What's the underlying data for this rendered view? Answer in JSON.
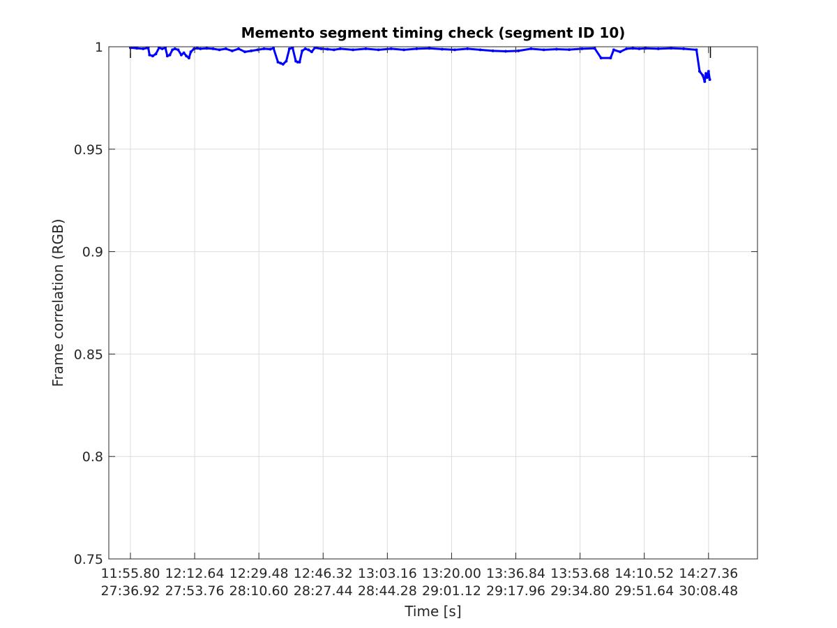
{
  "chart_data": {
    "type": "line",
    "title": "Memento segment timing check (segment ID 10)",
    "xlabel": "Time [s]",
    "ylabel": "Frame correlation (RGB)",
    "ylim": [
      0.75,
      1.0
    ],
    "xlim": [
      -34,
      986
    ],
    "grid": true,
    "yticks": [
      0.75,
      0.8,
      0.85,
      0.9,
      0.95,
      1.0
    ],
    "ytick_labels": [
      "0.75",
      "0.8",
      "0.85",
      "0.9",
      "0.95",
      "1"
    ],
    "xticks": [
      0,
      101,
      202,
      303,
      404,
      505,
      606,
      707,
      808,
      909
    ],
    "xtick_labels": [
      [
        "11:55.80",
        "27:36.92"
      ],
      [
        "12:12.64",
        "27:53.76"
      ],
      [
        "12:29.48",
        "28:10.60"
      ],
      [
        "12:46.32",
        "28:27.44"
      ],
      [
        "13:03.16",
        "28:44.28"
      ],
      [
        "13:20.00",
        "29:01.12"
      ],
      [
        "13:36.84",
        "29:17.96"
      ],
      [
        "13:53.68",
        "29:34.80"
      ],
      [
        "14:10.52",
        "29:51.64"
      ],
      [
        "14:27.36",
        "30:08.48"
      ]
    ],
    "markers": [
      0,
      912
    ],
    "series": [
      {
        "color": "#0000ff",
        "x": [
          0,
          10,
          20,
          28,
          30,
          35,
          40,
          45,
          50,
          55,
          58,
          62,
          66,
          70,
          75,
          80,
          84,
          88,
          92,
          95,
          100,
          105,
          110,
          120,
          130,
          140,
          150,
          160,
          170,
          180,
          190,
          200,
          210,
          220,
          225,
          232,
          236,
          240,
          245,
          250,
          255,
          260,
          263,
          266,
          270,
          275,
          280,
          285,
          290,
          300,
          310,
          320,
          330,
          350,
          370,
          390,
          410,
          430,
          450,
          470,
          490,
          510,
          530,
          550,
          570,
          590,
          610,
          630,
          650,
          670,
          690,
          710,
          730,
          740,
          755,
          760,
          770,
          780,
          790,
          800,
          810,
          830,
          850,
          870,
          890,
          895,
          900,
          903,
          905,
          907,
          909,
          911
        ],
        "values": [
          0.9995,
          0.9993,
          0.999,
          0.9995,
          0.996,
          0.9955,
          0.9965,
          0.9995,
          0.999,
          0.9995,
          0.9955,
          0.996,
          0.9985,
          0.999,
          0.9985,
          0.996,
          0.997,
          0.9955,
          0.9945,
          0.9975,
          0.999,
          0.9993,
          0.999,
          0.9992,
          0.999,
          0.9985,
          0.999,
          0.998,
          0.999,
          0.9975,
          0.998,
          0.9985,
          0.999,
          0.9988,
          0.9993,
          0.9925,
          0.992,
          0.9915,
          0.993,
          0.999,
          0.9995,
          0.993,
          0.9925,
          0.9925,
          0.998,
          0.999,
          0.9985,
          0.9975,
          0.9995,
          0.999,
          0.9988,
          0.9985,
          0.999,
          0.9985,
          0.999,
          0.9985,
          0.999,
          0.9985,
          0.999,
          0.9992,
          0.9988,
          0.9985,
          0.999,
          0.9985,
          0.998,
          0.9978,
          0.998,
          0.999,
          0.9985,
          0.9988,
          0.9986,
          0.999,
          0.9992,
          0.9945,
          0.9945,
          0.9985,
          0.9975,
          0.999,
          0.9992,
          0.999,
          0.9992,
          0.999,
          0.9993,
          0.999,
          0.9985,
          0.988,
          0.986,
          0.983,
          0.987,
          0.985,
          0.988,
          0.984
        ]
      }
    ]
  }
}
